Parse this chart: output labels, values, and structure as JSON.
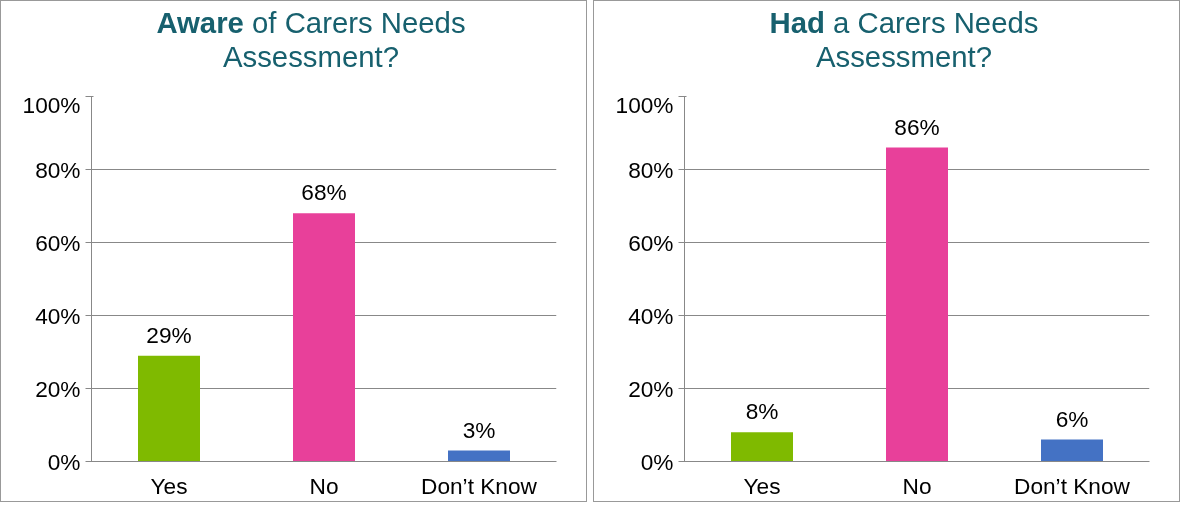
{
  "chart_data": [
    {
      "type": "bar",
      "title": "Aware of Carers Needs Assessment?",
      "categories": [
        "Yes",
        "No",
        "Don’t Know"
      ],
      "values": [
        29,
        68,
        3
      ],
      "colors": [
        "#7fba00",
        "#e8409a",
        "#4472c4"
      ],
      "value_labels": [
        "29%",
        "68%",
        "3%"
      ],
      "ylim": [
        0,
        100
      ],
      "yticks": [
        {
          "value": 0,
          "label": "0%"
        },
        {
          "value": 20,
          "label": "20%"
        },
        {
          "value": 40,
          "label": "40%"
        },
        {
          "value": 60,
          "label": "60%"
        },
        {
          "value": 80,
          "label": "80%"
        },
        {
          "value": 100,
          "label": "100%"
        }
      ],
      "grid": "y"
    },
    {
      "type": "bar",
      "title": "Had a Carers Needs Assessment?",
      "categories": [
        "Yes",
        "No",
        "Don’t Know"
      ],
      "values": [
        8,
        86,
        6
      ],
      "colors": [
        "#7fba00",
        "#e8409a",
        "#4472c4"
      ],
      "value_labels": [
        "8%",
        "86%",
        "6%"
      ],
      "ylim": [
        0,
        100
      ],
      "yticks": [
        {
          "value": 0,
          "label": "0%"
        },
        {
          "value": 20,
          "label": "20%"
        },
        {
          "value": 40,
          "label": "40%"
        },
        {
          "value": 60,
          "label": "60%"
        },
        {
          "value": 80,
          "label": "80%"
        },
        {
          "value": 100,
          "label": "100%"
        }
      ],
      "grid": "y"
    }
  ]
}
